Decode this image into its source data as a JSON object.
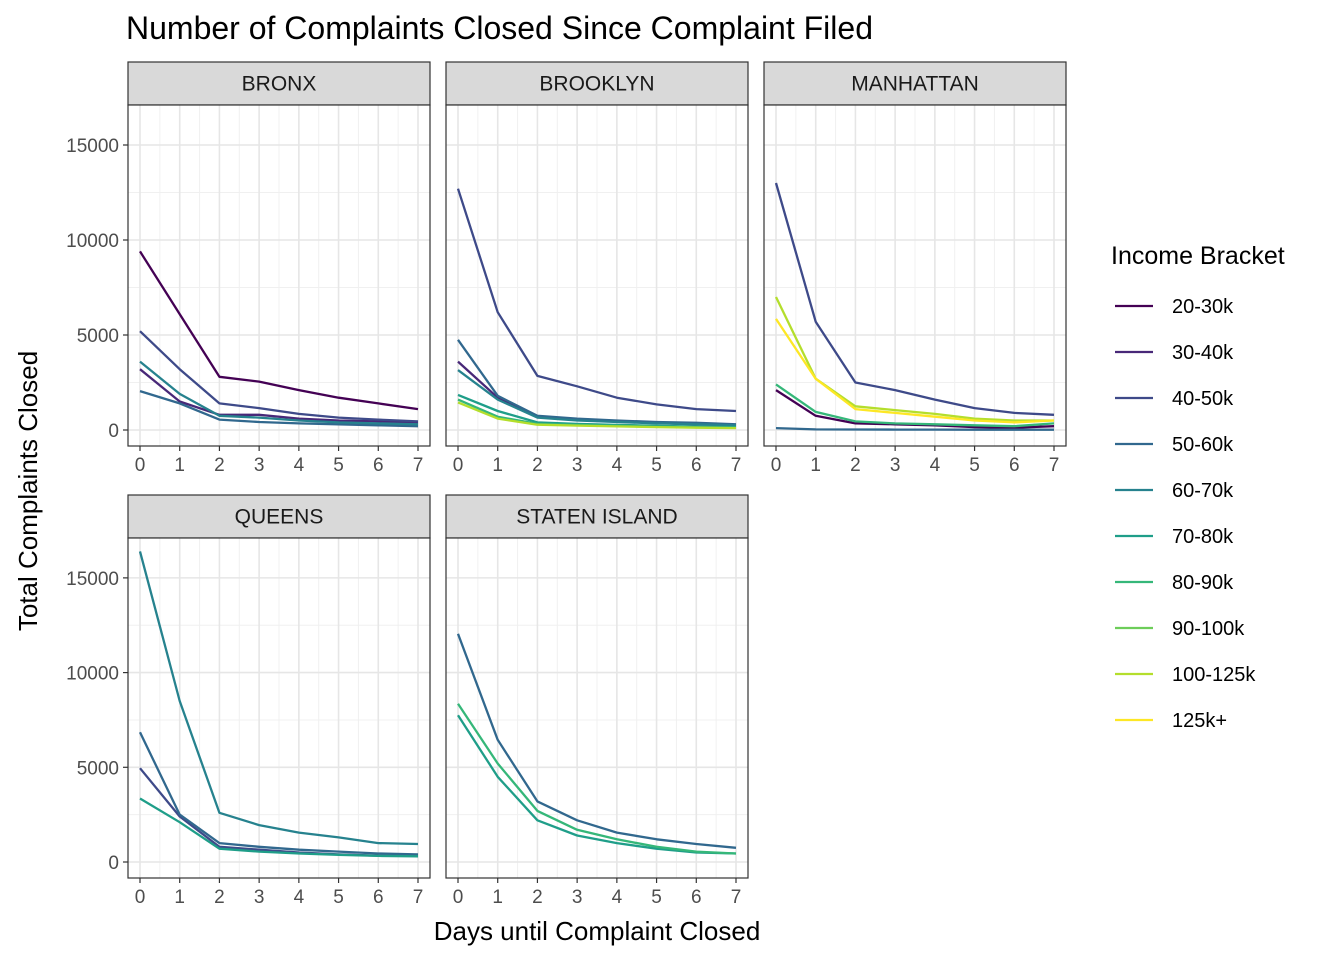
{
  "chart_data": {
    "type": "line",
    "title": "Number of Complaints Closed Since Complaint Filed",
    "xlabel": "Days until Complaint Closed",
    "ylabel": "Total Complaints Closed",
    "x": [
      0,
      1,
      2,
      3,
      4,
      5,
      6,
      7
    ],
    "xlim": [
      0,
      7
    ],
    "ylim": [
      0,
      17000
    ],
    "yticks": [
      0,
      5000,
      10000,
      15000
    ],
    "grid": true,
    "legend_title": "Income Bracket",
    "legend_placement": "right",
    "brackets": [
      {
        "name": "20-30k",
        "color": "#440154"
      },
      {
        "name": "30-40k",
        "color": "#482878"
      },
      {
        "name": "40-50k",
        "color": "#3E4A89"
      },
      {
        "name": "50-60k",
        "color": "#31688E"
      },
      {
        "name": "60-70k",
        "color": "#26828E"
      },
      {
        "name": "70-80k",
        "color": "#1F9E89"
      },
      {
        "name": "80-90k",
        "color": "#35B779"
      },
      {
        "name": "90-100k",
        "color": "#6DCD59"
      },
      {
        "name": "100-125k",
        "color": "#B4DE2C"
      },
      {
        "name": "125k+",
        "color": "#FDE725"
      }
    ],
    "panels": [
      {
        "name": "BRONX",
        "series": [
          {
            "bracket": "20-30k",
            "values": [
              9400,
              6100,
              2800,
              2550,
              2100,
              1700,
              1400,
              1100
            ]
          },
          {
            "bracket": "30-40k",
            "values": [
              3200,
              1500,
              800,
              800,
              600,
              500,
              450,
              400
            ]
          },
          {
            "bracket": "40-50k",
            "values": [
              5200,
              3200,
              1400,
              1150,
              850,
              650,
              550,
              450
            ]
          },
          {
            "bracket": "50-60k",
            "values": [
              2050,
              1400,
              550,
              420,
              350,
              300,
              250,
              200
            ]
          },
          {
            "bracket": "60-70k",
            "values": [
              3600,
              1900,
              750,
              650,
              500,
              400,
              350,
              300
            ]
          }
        ]
      },
      {
        "name": "BROOKLYN",
        "series": [
          {
            "bracket": "30-40k",
            "values": [
              3600,
              1700,
              700,
              550,
              450,
              380,
              300,
              250
            ]
          },
          {
            "bracket": "40-50k",
            "values": [
              12700,
              6200,
              2850,
              2300,
              1700,
              1350,
              1100,
              1000
            ]
          },
          {
            "bracket": "50-60k",
            "values": [
              4750,
              1800,
              750,
              600,
              500,
              420,
              380,
              300
            ]
          },
          {
            "bracket": "60-70k",
            "values": [
              3150,
              1600,
              650,
              500,
              420,
              350,
              300,
              250
            ]
          },
          {
            "bracket": "70-80k",
            "values": [
              1850,
              1000,
              400,
              320,
              270,
              220,
              180,
              150
            ]
          },
          {
            "bracket": "80-90k",
            "values": [
              1600,
              700,
              320,
              270,
              220,
              180,
              150,
              120
            ]
          },
          {
            "bracket": "100-125k",
            "values": [
              1450,
              600,
              280,
              230,
              190,
              150,
              120,
              100
            ]
          }
        ]
      },
      {
        "name": "MANHATTAN",
        "series": [
          {
            "bracket": "20-30k",
            "values": [
              2100,
              750,
              350,
              300,
              250,
              150,
              120,
              200
            ]
          },
          {
            "bracket": "40-50k",
            "values": [
              13000,
              5700,
              2500,
              2100,
              1600,
              1150,
              900,
              800
            ]
          },
          {
            "bracket": "50-60k",
            "values": [
              100,
              30,
              25,
              20,
              20,
              15,
              15,
              15
            ]
          },
          {
            "bracket": "80-90k",
            "values": [
              2400,
              950,
              450,
              350,
              300,
              250,
              200,
              350
            ]
          },
          {
            "bracket": "100-125k",
            "values": [
              7000,
              2700,
              1250,
              1050,
              850,
              600,
              500,
              500
            ]
          },
          {
            "bracket": "125k+",
            "values": [
              5850,
              2700,
              1100,
              900,
              700,
              500,
              400,
              500
            ]
          }
        ]
      },
      {
        "name": "QUEENS",
        "series": [
          {
            "bracket": "40-50k",
            "values": [
              4950,
              2400,
              800,
              650,
              500,
              400,
              330,
              320
            ]
          },
          {
            "bracket": "50-60k",
            "values": [
              6850,
              2500,
              1000,
              800,
              650,
              550,
              450,
              400
            ]
          },
          {
            "bracket": "60-70k",
            "values": [
              16400,
              8500,
              2600,
              1950,
              1550,
              1300,
              1000,
              950
            ]
          },
          {
            "bracket": "70-80k",
            "values": [
              3350,
              2100,
              700,
              550,
              450,
              380,
              320,
              300
            ]
          }
        ]
      },
      {
        "name": "STATEN ISLAND",
        "series": [
          {
            "bracket": "50-60k",
            "values": [
              12050,
              6450,
              3200,
              2200,
              1550,
              1200,
              950,
              750
            ]
          },
          {
            "bracket": "70-80k",
            "values": [
              7750,
              4500,
              2200,
              1400,
              1000,
              700,
              500,
              450
            ]
          },
          {
            "bracket": "80-90k",
            "values": [
              8350,
              5200,
              2700,
              1700,
              1200,
              800,
              550,
              450
            ]
          }
        ]
      }
    ]
  }
}
